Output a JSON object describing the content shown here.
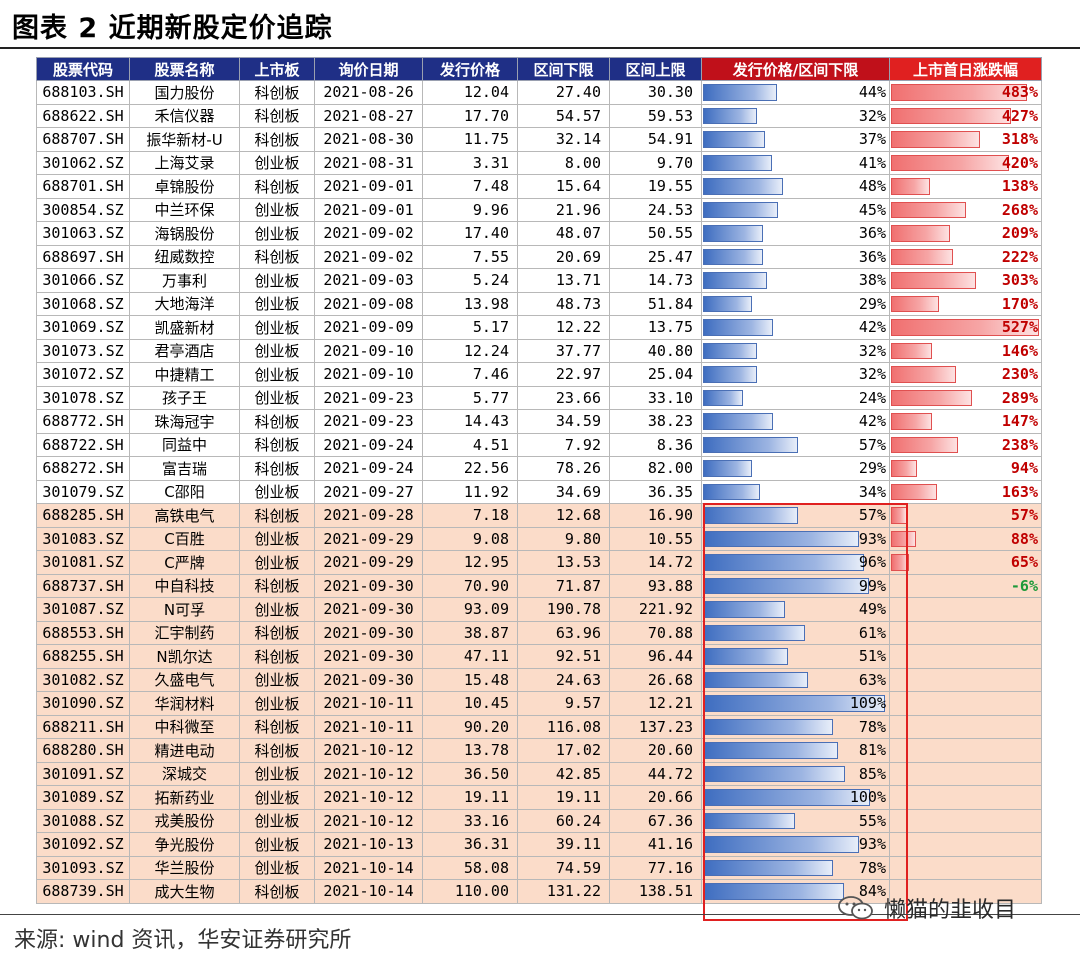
{
  "title": "图表 2 近期新股定价追踪",
  "columns": [
    "股票代码",
    "股票名称",
    "上市板",
    "询价日期",
    "发行价格",
    "区间下限",
    "区间上限",
    "发行价格/区间下限",
    "上市首日涨跌幅"
  ],
  "rows": [
    {
      "code": "688103.SH",
      "name": "国力股份",
      "board": "科创板",
      "date": "2021-08-26",
      "price": "12.04",
      "low": "27.40",
      "high": "30.30",
      "ratio_label": "44%",
      "ratio": 0.44,
      "rise_label": "483%",
      "rise": 4.83
    },
    {
      "code": "688622.SH",
      "name": "禾信仪器",
      "board": "科创板",
      "date": "2021-08-27",
      "price": "17.70",
      "low": "54.57",
      "high": "59.53",
      "ratio_label": "32%",
      "ratio": 0.32,
      "rise_label": "427%",
      "rise": 4.27
    },
    {
      "code": "688707.SH",
      "name": "振华新材-U",
      "board": "科创板",
      "date": "2021-08-30",
      "price": "11.75",
      "low": "32.14",
      "high": "54.91",
      "ratio_label": "37%",
      "ratio": 0.37,
      "rise_label": "318%",
      "rise": 3.18
    },
    {
      "code": "301062.SZ",
      "name": "上海艾录",
      "board": "创业板",
      "date": "2021-08-31",
      "price": "3.31",
      "low": "8.00",
      "high": "9.70",
      "ratio_label": "41%",
      "ratio": 0.41,
      "rise_label": "420%",
      "rise": 4.2
    },
    {
      "code": "688701.SH",
      "name": "卓锦股份",
      "board": "科创板",
      "date": "2021-09-01",
      "price": "7.48",
      "low": "15.64",
      "high": "19.55",
      "ratio_label": "48%",
      "ratio": 0.48,
      "rise_label": "138%",
      "rise": 1.38
    },
    {
      "code": "300854.SZ",
      "name": "中兰环保",
      "board": "创业板",
      "date": "2021-09-01",
      "price": "9.96",
      "low": "21.96",
      "high": "24.53",
      "ratio_label": "45%",
      "ratio": 0.45,
      "rise_label": "268%",
      "rise": 2.68
    },
    {
      "code": "301063.SZ",
      "name": "海锅股份",
      "board": "创业板",
      "date": "2021-09-02",
      "price": "17.40",
      "low": "48.07",
      "high": "50.55",
      "ratio_label": "36%",
      "ratio": 0.36,
      "rise_label": "209%",
      "rise": 2.09
    },
    {
      "code": "688697.SH",
      "name": "纽威数控",
      "board": "科创板",
      "date": "2021-09-02",
      "price": "7.55",
      "low": "20.69",
      "high": "25.47",
      "ratio_label": "36%",
      "ratio": 0.36,
      "rise_label": "222%",
      "rise": 2.22
    },
    {
      "code": "301066.SZ",
      "name": "万事利",
      "board": "创业板",
      "date": "2021-09-03",
      "price": "5.24",
      "low": "13.71",
      "high": "14.73",
      "ratio_label": "38%",
      "ratio": 0.38,
      "rise_label": "303%",
      "rise": 3.03
    },
    {
      "code": "301068.SZ",
      "name": "大地海洋",
      "board": "创业板",
      "date": "2021-09-08",
      "price": "13.98",
      "low": "48.73",
      "high": "51.84",
      "ratio_label": "29%",
      "ratio": 0.29,
      "rise_label": "170%",
      "rise": 1.7
    },
    {
      "code": "301069.SZ",
      "name": "凯盛新材",
      "board": "创业板",
      "date": "2021-09-09",
      "price": "5.17",
      "low": "12.22",
      "high": "13.75",
      "ratio_label": "42%",
      "ratio": 0.42,
      "rise_label": "527%",
      "rise": 5.27
    },
    {
      "code": "301073.SZ",
      "name": "君亭酒店",
      "board": "创业板",
      "date": "2021-09-10",
      "price": "12.24",
      "low": "37.77",
      "high": "40.80",
      "ratio_label": "32%",
      "ratio": 0.32,
      "rise_label": "146%",
      "rise": 1.46
    },
    {
      "code": "301072.SZ",
      "name": "中捷精工",
      "board": "创业板",
      "date": "2021-09-10",
      "price": "7.46",
      "low": "22.97",
      "high": "25.04",
      "ratio_label": "32%",
      "ratio": 0.32,
      "rise_label": "230%",
      "rise": 2.3
    },
    {
      "code": "301078.SZ",
      "name": "孩子王",
      "board": "创业板",
      "date": "2021-09-23",
      "price": "5.77",
      "low": "23.66",
      "high": "33.10",
      "ratio_label": "24%",
      "ratio": 0.24,
      "rise_label": "289%",
      "rise": 2.89
    },
    {
      "code": "688772.SH",
      "name": "珠海冠宇",
      "board": "科创板",
      "date": "2021-09-23",
      "price": "14.43",
      "low": "34.59",
      "high": "38.23",
      "ratio_label": "42%",
      "ratio": 0.42,
      "rise_label": "147%",
      "rise": 1.47
    },
    {
      "code": "688722.SH",
      "name": "同益中",
      "board": "科创板",
      "date": "2021-09-24",
      "price": "4.51",
      "low": "7.92",
      "high": "8.36",
      "ratio_label": "57%",
      "ratio": 0.57,
      "rise_label": "238%",
      "rise": 2.38
    },
    {
      "code": "688272.SH",
      "name": "富吉瑞",
      "board": "科创板",
      "date": "2021-09-24",
      "price": "22.56",
      "low": "78.26",
      "high": "82.00",
      "ratio_label": "29%",
      "ratio": 0.29,
      "rise_label": "94%",
      "rise": 0.94
    },
    {
      "code": "301079.SZ",
      "name": "C邵阳",
      "board": "创业板",
      "date": "2021-09-27",
      "price": "11.92",
      "low": "34.69",
      "high": "36.35",
      "ratio_label": "34%",
      "ratio": 0.34,
      "rise_label": "163%",
      "rise": 1.63
    },
    {
      "code": "688285.SH",
      "name": "高铁电气",
      "board": "科创板",
      "date": "2021-09-28",
      "price": "7.18",
      "low": "12.68",
      "high": "16.90",
      "ratio_label": "57%",
      "ratio": 0.57,
      "rise_label": "57%",
      "rise": 0.57,
      "late": true
    },
    {
      "code": "301083.SZ",
      "name": "C百胜",
      "board": "创业板",
      "date": "2021-09-29",
      "price": "9.08",
      "low": "9.80",
      "high": "10.55",
      "ratio_label": "93%",
      "ratio": 0.93,
      "rise_label": "88%",
      "rise": 0.88,
      "late": true
    },
    {
      "code": "301081.SZ",
      "name": "C严牌",
      "board": "创业板",
      "date": "2021-09-29",
      "price": "12.95",
      "low": "13.53",
      "high": "14.72",
      "ratio_label": "96%",
      "ratio": 0.96,
      "rise_label": "65%",
      "rise": 0.65,
      "late": true
    },
    {
      "code": "688737.SH",
      "name": "中自科技",
      "board": "科创板",
      "date": "2021-09-30",
      "price": "70.90",
      "low": "71.87",
      "high": "93.88",
      "ratio_label": "99%",
      "ratio": 0.99,
      "rise_label": "-6%",
      "rise": -0.06,
      "late": true
    },
    {
      "code": "301087.SZ",
      "name": "N可孚",
      "board": "创业板",
      "date": "2021-09-30",
      "price": "93.09",
      "low": "190.78",
      "high": "221.92",
      "ratio_label": "49%",
      "ratio": 0.49,
      "rise_label": "",
      "rise": null,
      "late": true
    },
    {
      "code": "688553.SH",
      "name": "汇宇制药",
      "board": "科创板",
      "date": "2021-09-30",
      "price": "38.87",
      "low": "63.96",
      "high": "70.88",
      "ratio_label": "61%",
      "ratio": 0.61,
      "rise_label": "",
      "rise": null,
      "late": true
    },
    {
      "code": "688255.SH",
      "name": "N凯尔达",
      "board": "科创板",
      "date": "2021-09-30",
      "price": "47.11",
      "low": "92.51",
      "high": "96.44",
      "ratio_label": "51%",
      "ratio": 0.51,
      "rise_label": "",
      "rise": null,
      "late": true
    },
    {
      "code": "301082.SZ",
      "name": "久盛电气",
      "board": "创业板",
      "date": "2021-09-30",
      "price": "15.48",
      "low": "24.63",
      "high": "26.68",
      "ratio_label": "63%",
      "ratio": 0.63,
      "rise_label": "",
      "rise": null,
      "late": true
    },
    {
      "code": "301090.SZ",
      "name": "华润材料",
      "board": "创业板",
      "date": "2021-10-11",
      "price": "10.45",
      "low": "9.57",
      "high": "12.21",
      "ratio_label": "109%",
      "ratio": 1.09,
      "rise_label": "",
      "rise": null,
      "late": true
    },
    {
      "code": "688211.SH",
      "name": "中科微至",
      "board": "科创板",
      "date": "2021-10-11",
      "price": "90.20",
      "low": "116.08",
      "high": "137.23",
      "ratio_label": "78%",
      "ratio": 0.78,
      "rise_label": "",
      "rise": null,
      "late": true
    },
    {
      "code": "688280.SH",
      "name": "精进电动",
      "board": "科创板",
      "date": "2021-10-12",
      "price": "13.78",
      "low": "17.02",
      "high": "20.60",
      "ratio_label": "81%",
      "ratio": 0.81,
      "rise_label": "",
      "rise": null,
      "late": true
    },
    {
      "code": "301091.SZ",
      "name": "深城交",
      "board": "创业板",
      "date": "2021-10-12",
      "price": "36.50",
      "low": "42.85",
      "high": "44.72",
      "ratio_label": "85%",
      "ratio": 0.85,
      "rise_label": "",
      "rise": null,
      "late": true
    },
    {
      "code": "301089.SZ",
      "name": "拓新药业",
      "board": "创业板",
      "date": "2021-10-12",
      "price": "19.11",
      "low": "19.11",
      "high": "20.66",
      "ratio_label": "100%",
      "ratio": 1.0,
      "rise_label": "",
      "rise": null,
      "late": true
    },
    {
      "code": "301088.SZ",
      "name": "戎美股份",
      "board": "创业板",
      "date": "2021-10-12",
      "price": "33.16",
      "low": "60.24",
      "high": "67.36",
      "ratio_label": "55%",
      "ratio": 0.55,
      "rise_label": "",
      "rise": null,
      "late": true
    },
    {
      "code": "301092.SZ",
      "name": "争光股份",
      "board": "创业板",
      "date": "2021-10-13",
      "price": "36.31",
      "low": "39.11",
      "high": "41.16",
      "ratio_label": "93%",
      "ratio": 0.93,
      "rise_label": "",
      "rise": null,
      "late": true
    },
    {
      "code": "301093.SZ",
      "name": "华兰股份",
      "board": "创业板",
      "date": "2021-10-14",
      "price": "58.08",
      "low": "74.59",
      "high": "77.16",
      "ratio_label": "78%",
      "ratio": 0.78,
      "rise_label": "",
      "rise": null,
      "late": true
    },
    {
      "code": "688739.SH",
      "name": "成大生物",
      "board": "科创板",
      "date": "2021-10-14",
      "price": "110.00",
      "low": "131.22",
      "high": "138.51",
      "ratio_label": "84%",
      "ratio": 0.84,
      "rise_label": "",
      "rise": null,
      "late": true
    }
  ],
  "source": "来源: wind 资讯，华安证券研究所",
  "watermark": "懒猫的韭收目",
  "colors": {
    "header_bg": "#1f2f86",
    "ratio_header_bg": "#c0101a",
    "rise_header_bg": "#e02020",
    "late_row_bg": "#fbdcc9",
    "highlight_border": "#e02020",
    "positive_text": "#c00000",
    "negative_text": "#1d9a3a"
  },
  "icons": {
    "watermark_icon": "wechat-icon"
  }
}
